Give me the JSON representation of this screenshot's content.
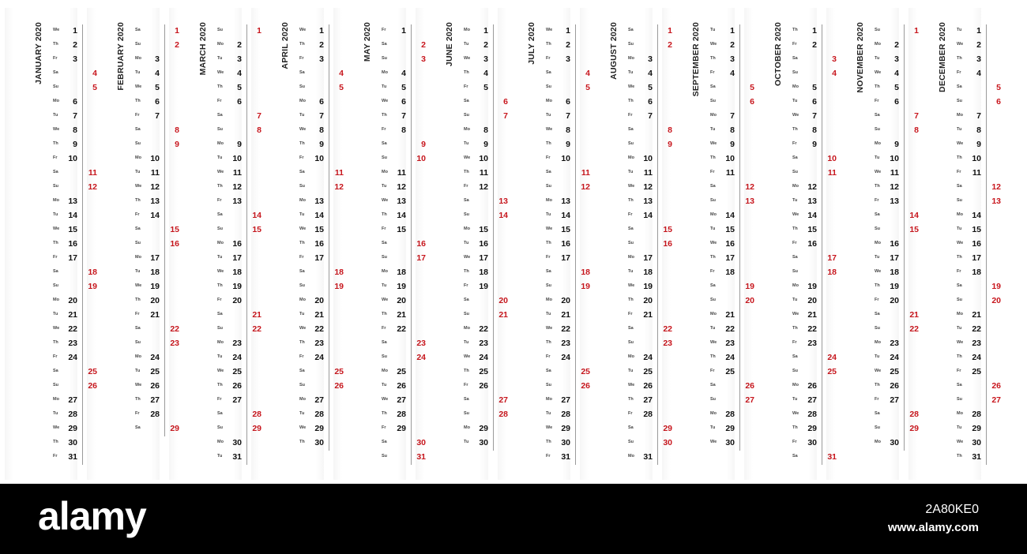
{
  "year": 2020,
  "months": [
    {
      "title": "JANUARY 2020",
      "first_weekday": 2,
      "days": 31
    },
    {
      "title": "FEBRUARY 2020",
      "first_weekday": 5,
      "days": 29
    },
    {
      "title": "MARCH 2020",
      "first_weekday": 6,
      "days": 31
    },
    {
      "title": "APRIL 2020",
      "first_weekday": 2,
      "days": 30
    },
    {
      "title": "MAY 2020",
      "first_weekday": 4,
      "days": 31
    },
    {
      "title": "JUNE 2020",
      "first_weekday": 0,
      "days": 30
    },
    {
      "title": "JULY 2020",
      "first_weekday": 2,
      "days": 31
    },
    {
      "title": "AUGUST 2020",
      "first_weekday": 5,
      "days": 31
    },
    {
      "title": "SEPTEMBER 2020",
      "first_weekday": 1,
      "days": 30
    },
    {
      "title": "OCTOBER 2020",
      "first_weekday": 3,
      "days": 31
    },
    {
      "title": "NOVEMBER 2020",
      "first_weekday": 6,
      "days": 30
    },
    {
      "title": "DECEMBER 2020",
      "first_weekday": 1,
      "days": 31
    }
  ],
  "weekday_abbr": [
    "Mo",
    "Tu",
    "We",
    "Th",
    "Fr",
    "Sa",
    "Su"
  ],
  "colors": {
    "weekday": "#111111",
    "weekend": "#c8161d",
    "divider": "#9a9a9a"
  },
  "footer": {
    "logo": "alamy",
    "image_id": "2A80KE0",
    "url": "www.alamy.com"
  }
}
